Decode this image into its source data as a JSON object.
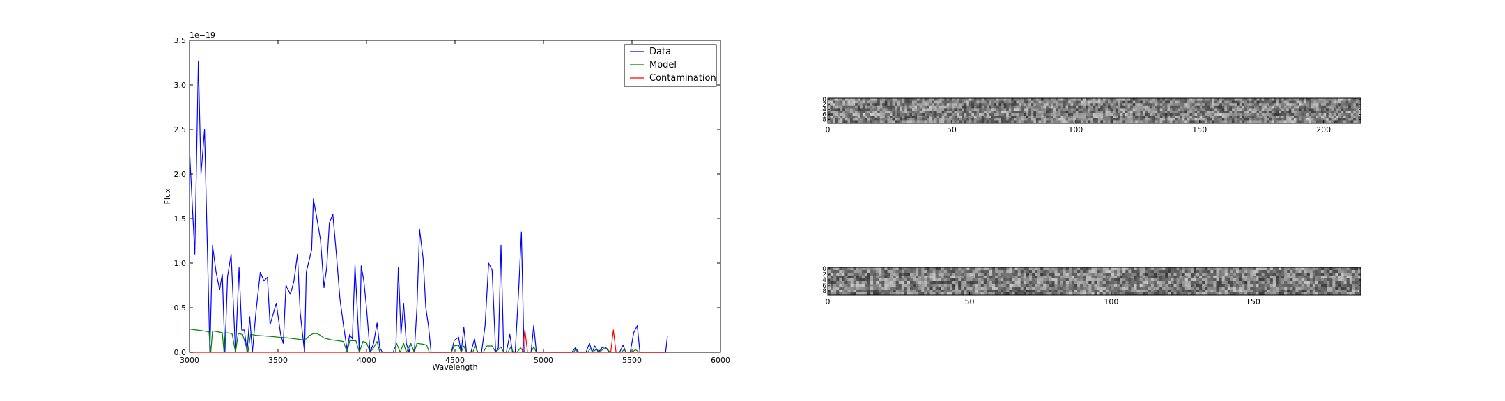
{
  "chart_data": [
    {
      "type": "line",
      "title": "",
      "xlabel": "Wavelength",
      "ylabel": "Flux",
      "offset_text": "1e−19",
      "xlim": [
        3000,
        6000
      ],
      "ylim": [
        0,
        3.5
      ],
      "xticks": [
        "3000",
        "3500",
        "4000",
        "4500",
        "5000",
        "5500",
        "6000"
      ],
      "yticks": [
        "0.0",
        "0.5",
        "1.0",
        "1.5",
        "2.0",
        "2.5",
        "3.0",
        "3.5"
      ],
      "legend_position": "top-right",
      "grid": false,
      "series": [
        {
          "name": "Data",
          "color": "#0000ff",
          "points": [
            [
              3000,
              2.27
            ],
            [
              3030,
              1.1
            ],
            [
              3050,
              3.27
            ],
            [
              3065,
              2.0
            ],
            [
              3085,
              2.5
            ],
            [
              3115,
              0.0
            ],
            [
              3130,
              1.2
            ],
            [
              3150,
              0.9
            ],
            [
              3170,
              0.7
            ],
            [
              3185,
              0.88
            ],
            [
              3200,
              0.0
            ],
            [
              3215,
              0.85
            ],
            [
              3235,
              1.1
            ],
            [
              3260,
              0.0
            ],
            [
              3280,
              0.95
            ],
            [
              3295,
              0.25
            ],
            [
              3310,
              0.25
            ],
            [
              3325,
              0.0
            ],
            [
              3340,
              0.4
            ],
            [
              3355,
              0.0
            ],
            [
              3375,
              0.45
            ],
            [
              3400,
              0.9
            ],
            [
              3420,
              0.8
            ],
            [
              3440,
              0.84
            ],
            [
              3455,
              0.31
            ],
            [
              3490,
              0.55
            ],
            [
              3515,
              0.2
            ],
            [
              3530,
              0.1
            ],
            [
              3545,
              0.75
            ],
            [
              3570,
              0.65
            ],
            [
              3590,
              0.8
            ],
            [
              3610,
              1.1
            ],
            [
              3625,
              0.45
            ],
            [
              3650,
              0.0
            ],
            [
              3660,
              0.9
            ],
            [
              3690,
              1.15
            ],
            [
              3700,
              1.72
            ],
            [
              3720,
              1.5
            ],
            [
              3740,
              1.26
            ],
            [
              3760,
              0.73
            ],
            [
              3775,
              0.95
            ],
            [
              3790,
              1.45
            ],
            [
              3810,
              1.55
            ],
            [
              3830,
              1.1
            ],
            [
              3850,
              0.6
            ],
            [
              3870,
              0.3
            ],
            [
              3890,
              0.03
            ],
            [
              3905,
              0.2
            ],
            [
              3920,
              0.15
            ],
            [
              3935,
              0.98
            ],
            [
              3945,
              0.6
            ],
            [
              3960,
              0.0
            ],
            [
              3970,
              0.97
            ],
            [
              3985,
              0.8
            ],
            [
              4000,
              0.5
            ],
            [
              4020,
              0.0
            ],
            [
              4040,
              0.1
            ],
            [
              4060,
              0.33
            ],
            [
              4075,
              0.05
            ],
            [
              4090,
              0.0
            ],
            [
              4150,
              0.0
            ],
            [
              4165,
              0.0
            ],
            [
              4180,
              0.95
            ],
            [
              4195,
              0.2
            ],
            [
              4210,
              0.55
            ],
            [
              4225,
              0.1
            ],
            [
              4240,
              0.0
            ],
            [
              4250,
              0.1
            ],
            [
              4270,
              0.0
            ],
            [
              4285,
              0.5
            ],
            [
              4300,
              1.38
            ],
            [
              4320,
              1.05
            ],
            [
              4335,
              0.5
            ],
            [
              4350,
              0.3
            ],
            [
              4365,
              0.0
            ],
            [
              4480,
              0.0
            ],
            [
              4495,
              0.13
            ],
            [
              4520,
              0.17
            ],
            [
              4535,
              0.0
            ],
            [
              4550,
              0.28
            ],
            [
              4565,
              0.0
            ],
            [
              4590,
              0.0
            ],
            [
              4610,
              0.15
            ],
            [
              4625,
              0.0
            ],
            [
              4650,
              0.0
            ],
            [
              4670,
              0.3
            ],
            [
              4690,
              1.0
            ],
            [
              4710,
              0.92
            ],
            [
              4730,
              0.0
            ],
            [
              4745,
              0.05
            ],
            [
              4760,
              1.2
            ],
            [
              4775,
              0.0
            ],
            [
              4790,
              0.0
            ],
            [
              4810,
              0.2
            ],
            [
              4825,
              0.0
            ],
            [
              4840,
              0.0
            ],
            [
              4860,
              0.7
            ],
            [
              4875,
              1.35
            ],
            [
              4890,
              0.0
            ],
            [
              4910,
              0.0
            ],
            [
              4930,
              0.0
            ],
            [
              4945,
              0.3
            ],
            [
              4960,
              0.0
            ],
            [
              5000,
              0.0
            ],
            [
              5160,
              0.0
            ],
            [
              5180,
              0.05
            ],
            [
              5200,
              0.0
            ],
            [
              5240,
              0.0
            ],
            [
              5260,
              0.1
            ],
            [
              5275,
              0.0
            ],
            [
              5290,
              0.07
            ],
            [
              5310,
              0.0
            ],
            [
              5330,
              0.05
            ],
            [
              5350,
              0.06
            ],
            [
              5370,
              0.0
            ],
            [
              5430,
              0.0
            ],
            [
              5450,
              0.08
            ],
            [
              5465,
              0.0
            ],
            [
              5490,
              0.0
            ],
            [
              5510,
              0.22
            ],
            [
              5530,
              0.3
            ],
            [
              5545,
              0.0
            ],
            [
              5690,
              0.0
            ],
            [
              5700,
              0.18
            ]
          ]
        },
        {
          "name": "Model",
          "color": "#008000",
          "points": [
            [
              3000,
              0.26
            ],
            [
              3040,
              0.25
            ],
            [
              3080,
              0.24
            ],
            [
              3110,
              0.23
            ],
            [
              3120,
              0.0
            ],
            [
              3130,
              0.24
            ],
            [
              3160,
              0.23
            ],
            [
              3185,
              0.22
            ],
            [
              3195,
              0.0
            ],
            [
              3205,
              0.22
            ],
            [
              3240,
              0.21
            ],
            [
              3260,
              0.0
            ],
            [
              3275,
              0.21
            ],
            [
              3300,
              0.2
            ],
            [
              3330,
              0.0
            ],
            [
              3345,
              0.2
            ],
            [
              3380,
              0.19
            ],
            [
              3450,
              0.18
            ],
            [
              3500,
              0.17
            ],
            [
              3560,
              0.16
            ],
            [
              3600,
              0.15
            ],
            [
              3640,
              0.14
            ],
            [
              3660,
              0.15
            ],
            [
              3680,
              0.19
            ],
            [
              3700,
              0.21
            ],
            [
              3720,
              0.21
            ],
            [
              3740,
              0.19
            ],
            [
              3760,
              0.16
            ],
            [
              3800,
              0.14
            ],
            [
              3840,
              0.13
            ],
            [
              3870,
              0.12
            ],
            [
              3890,
              0.0
            ],
            [
              3905,
              0.13
            ],
            [
              3940,
              0.13
            ],
            [
              3960,
              0.0
            ],
            [
              3980,
              0.12
            ],
            [
              4000,
              0.11
            ],
            [
              4020,
              0.0
            ],
            [
              4040,
              0.05
            ],
            [
              4060,
              0.12
            ],
            [
              4075,
              0.0
            ],
            [
              4150,
              0.0
            ],
            [
              4170,
              0.1
            ],
            [
              4190,
              0.0
            ],
            [
              4210,
              0.1
            ],
            [
              4225,
              0.0
            ],
            [
              4250,
              0.1
            ],
            [
              4270,
              0.0
            ],
            [
              4285,
              0.1
            ],
            [
              4320,
              0.09
            ],
            [
              4340,
              0.08
            ],
            [
              4355,
              0.0
            ],
            [
              4480,
              0.0
            ],
            [
              4495,
              0.07
            ],
            [
              4520,
              0.08
            ],
            [
              4535,
              0.0
            ],
            [
              4550,
              0.07
            ],
            [
              4565,
              0.0
            ],
            [
              4600,
              0.0
            ],
            [
              4615,
              0.07
            ],
            [
              4630,
              0.0
            ],
            [
              4660,
              0.0
            ],
            [
              4680,
              0.07
            ],
            [
              4710,
              0.07
            ],
            [
              4730,
              0.0
            ],
            [
              4760,
              0.06
            ],
            [
              4775,
              0.0
            ],
            [
              4800,
              0.0
            ],
            [
              4815,
              0.06
            ],
            [
              4830,
              0.0
            ],
            [
              4850,
              0.0
            ],
            [
              4870,
              0.05
            ],
            [
              4890,
              0.0
            ],
            [
              4930,
              0.0
            ],
            [
              4945,
              0.06
            ],
            [
              4960,
              0.0
            ],
            [
              5170,
              0.0
            ],
            [
              5180,
              0.03
            ],
            [
              5195,
              0.0
            ],
            [
              5250,
              0.0
            ],
            [
              5265,
              0.04
            ],
            [
              5280,
              0.0
            ],
            [
              5300,
              0.04
            ],
            [
              5315,
              0.0
            ],
            [
              5340,
              0.04
            ],
            [
              5360,
              0.04
            ],
            [
              5375,
              0.0
            ],
            [
              5440,
              0.0
            ],
            [
              5455,
              0.03
            ],
            [
              5470,
              0.0
            ],
            [
              5500,
              0.0
            ],
            [
              5520,
              0.03
            ],
            [
              5540,
              0.0
            ],
            [
              5700,
              0.0
            ]
          ]
        },
        {
          "name": "Contamination",
          "color": "#ff0000",
          "points": [
            [
              3000,
              0.0
            ],
            [
              4880,
              0.0
            ],
            [
              4895,
              0.25
            ],
            [
              4910,
              0.0
            ],
            [
              5380,
              0.0
            ],
            [
              5395,
              0.25
            ],
            [
              5410,
              0.0
            ],
            [
              5700,
              0.0
            ]
          ]
        }
      ]
    },
    {
      "type": "heatmap",
      "title": "",
      "xlabel": "",
      "ylabel": "",
      "xlim": [
        0,
        215
      ],
      "ylim": [
        9,
        0
      ],
      "xticks": [
        "0",
        "50",
        "100",
        "150",
        "200"
      ],
      "yticks": [
        "0",
        "2",
        "4",
        "6",
        "8"
      ],
      "cols": 215,
      "rows": 10,
      "colormap": "gray"
    },
    {
      "type": "heatmap",
      "title": "",
      "xlabel": "",
      "ylabel": "",
      "xlim": [
        0,
        188
      ],
      "ylim": [
        9,
        0
      ],
      "xticks": [
        "0",
        "50",
        "100",
        "150"
      ],
      "yticks": [
        "0",
        "2",
        "4",
        "6",
        "8"
      ],
      "cols": 188,
      "rows": 10,
      "colormap": "gray"
    }
  ]
}
